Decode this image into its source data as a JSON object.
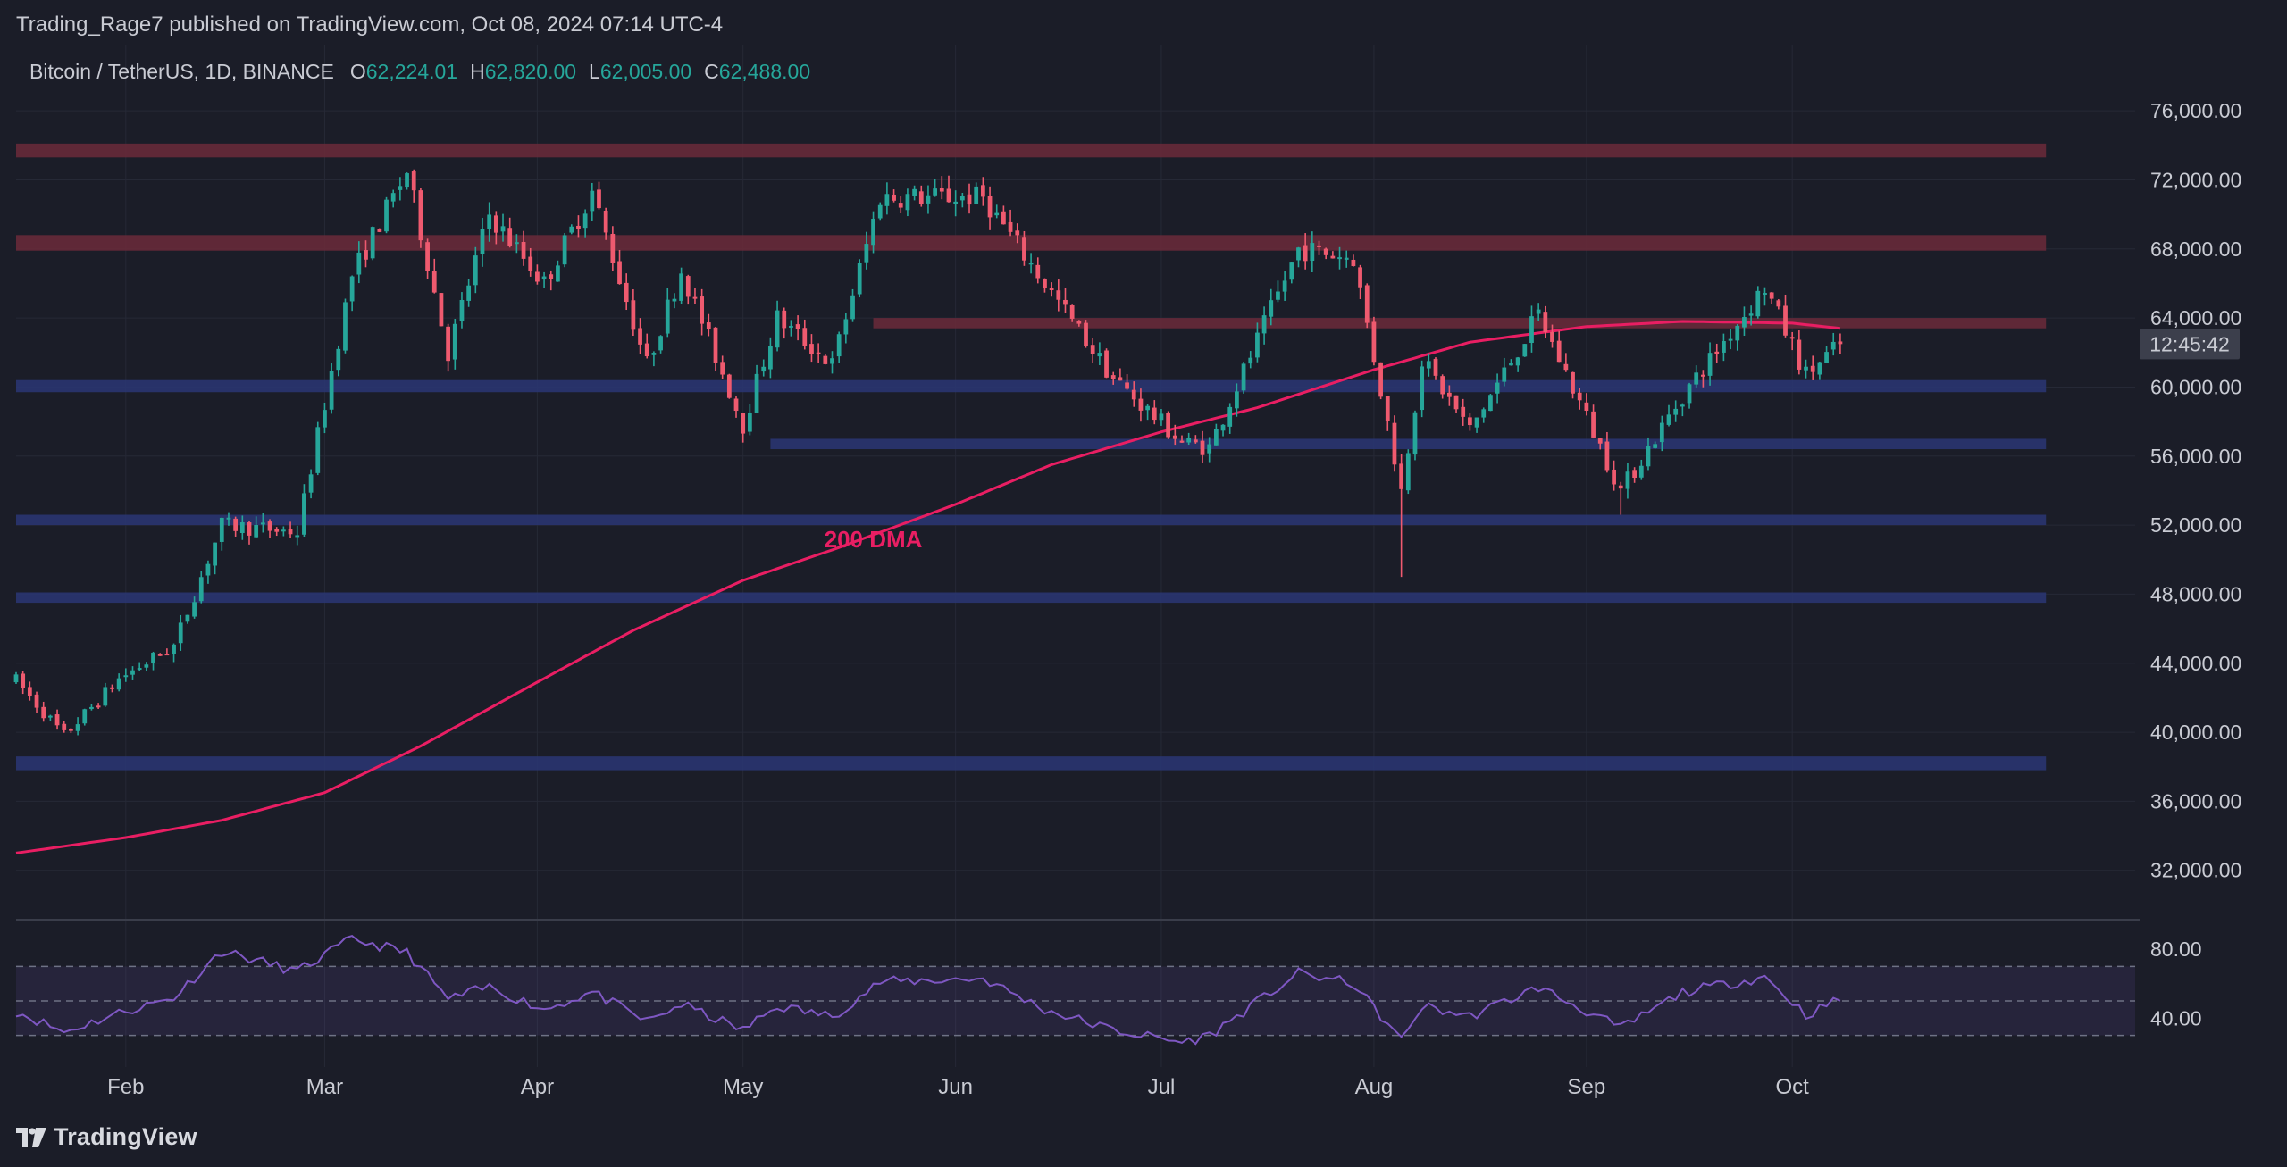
{
  "attribution": "Trading_Rage7 published on TradingView.com, Oct 08, 2024 07:14 UTC-4",
  "brand": {
    "name": "TradingView",
    "icon": "tradingview-logo-icon"
  },
  "colors": {
    "background": "#1b1d28",
    "up": "#26a69a",
    "down": "#ef5a6f",
    "dma": "#e91e63",
    "resistance": "#6b2a3a",
    "support": "#2a3570",
    "rsi": "#7e57c2",
    "text": "#c9cbd3"
  },
  "chart_data": [
    {
      "type": "candlestick",
      "title": "Bitcoin / TetherUS, 1D, BINANCE",
      "ohlc_header": {
        "O": "62,224.01",
        "H": "62,820.00",
        "L": "62,005.00",
        "C": "62,488.00"
      },
      "countdown": "12:45:42",
      "x_labels": [
        "Feb",
        "Mar",
        "Apr",
        "May",
        "Jun",
        "Jul",
        "Aug",
        "Sep",
        "Oct"
      ],
      "x_label_dates": [
        "2024-02-01",
        "2024-03-01",
        "2024-04-01",
        "2024-05-01",
        "2024-06-01",
        "2024-07-01",
        "2024-08-01",
        "2024-09-01",
        "2024-10-01"
      ],
      "xlim": [
        "2024-01-16",
        "2024-11-20"
      ],
      "y_ticks": [
        "76,000.00",
        "72,000.00",
        "68,000.00",
        "64,000.00",
        "60,000.00",
        "56,000.00",
        "52,000.00",
        "48,000.00",
        "44,000.00",
        "40,000.00",
        "36,000.00",
        "32,000.00"
      ],
      "ylim": [
        29400,
        78800
      ],
      "resistance_zones": [
        {
          "from": "2024-01-16",
          "to": "2024-11-07",
          "y": [
            73300,
            74100
          ]
        },
        {
          "from": "2024-01-16",
          "to": "2024-11-07",
          "y": [
            67900,
            68800
          ]
        },
        {
          "from": "2024-05-20",
          "to": "2024-11-07",
          "y": [
            63400,
            64000
          ]
        }
      ],
      "support_zones": [
        {
          "from": "2024-01-16",
          "to": "2024-11-07",
          "y": [
            59700,
            60400
          ]
        },
        {
          "from": "2024-05-05",
          "to": "2024-11-07",
          "y": [
            56400,
            57000
          ]
        },
        {
          "from": "2024-01-16",
          "to": "2024-11-07",
          "y": [
            52000,
            52600
          ]
        },
        {
          "from": "2024-01-16",
          "to": "2024-11-07",
          "y": [
            47500,
            48100
          ]
        },
        {
          "from": "2024-01-16",
          "to": "2024-11-07",
          "y": [
            37800,
            38600
          ]
        }
      ],
      "dma_label": "200 DMA",
      "dma_label_point": {
        "date": "2024-05-20",
        "value": 50700
      },
      "dma_200": [
        {
          "date": "2024-01-16",
          "value": 33000
        },
        {
          "date": "2024-02-01",
          "value": 33900
        },
        {
          "date": "2024-02-15",
          "value": 34900
        },
        {
          "date": "2024-03-01",
          "value": 36500
        },
        {
          "date": "2024-03-15",
          "value": 39200
        },
        {
          "date": "2024-04-01",
          "value": 42900
        },
        {
          "date": "2024-04-15",
          "value": 45900
        },
        {
          "date": "2024-05-01",
          "value": 48800
        },
        {
          "date": "2024-05-15",
          "value": 50700
        },
        {
          "date": "2024-06-01",
          "value": 53200
        },
        {
          "date": "2024-06-15",
          "value": 55500
        },
        {
          "date": "2024-07-01",
          "value": 57400
        },
        {
          "date": "2024-07-15",
          "value": 58800
        },
        {
          "date": "2024-08-01",
          "value": 61000
        },
        {
          "date": "2024-08-15",
          "value": 62600
        },
        {
          "date": "2024-09-01",
          "value": 63500
        },
        {
          "date": "2024-09-15",
          "value": 63800
        },
        {
          "date": "2024-10-01",
          "value": 63700
        },
        {
          "date": "2024-10-08",
          "value": 63400
        }
      ],
      "price_path": [
        {
          "date": "2024-01-16",
          "value": 43000
        },
        {
          "date": "2024-01-23",
          "value": 39800
        },
        {
          "date": "2024-01-31",
          "value": 43100
        },
        {
          "date": "2024-02-08",
          "value": 45000
        },
        {
          "date": "2024-02-15",
          "value": 52000
        },
        {
          "date": "2024-02-26",
          "value": 51600
        },
        {
          "date": "2024-03-05",
          "value": 66500
        },
        {
          "date": "2024-03-13",
          "value": 72500
        },
        {
          "date": "2024-03-19",
          "value": 62000
        },
        {
          "date": "2024-03-25",
          "value": 70000
        },
        {
          "date": "2024-04-02",
          "value": 66000
        },
        {
          "date": "2024-04-09",
          "value": 71300
        },
        {
          "date": "2024-04-17",
          "value": 61300
        },
        {
          "date": "2024-04-22",
          "value": 66800
        },
        {
          "date": "2024-05-01",
          "value": 57800
        },
        {
          "date": "2024-05-06",
          "value": 64000
        },
        {
          "date": "2024-05-14",
          "value": 61300
        },
        {
          "date": "2024-05-21",
          "value": 71000
        },
        {
          "date": "2024-06-05",
          "value": 71000
        },
        {
          "date": "2024-06-14",
          "value": 66000
        },
        {
          "date": "2024-06-24",
          "value": 60500
        },
        {
          "date": "2024-07-04",
          "value": 56800
        },
        {
          "date": "2024-07-08",
          "value": 56500
        },
        {
          "date": "2024-07-21",
          "value": 68000
        },
        {
          "date": "2024-07-29",
          "value": 67500
        },
        {
          "date": "2024-08-05",
          "value": 54000
        },
        {
          "date": "2024-08-08",
          "value": 61600
        },
        {
          "date": "2024-08-15",
          "value": 57500
        },
        {
          "date": "2024-08-25",
          "value": 64200
        },
        {
          "date": "2024-09-06",
          "value": 54000
        },
        {
          "date": "2024-09-15",
          "value": 59500
        },
        {
          "date": "2024-09-27",
          "value": 65800
        },
        {
          "date": "2024-10-03",
          "value": 60700
        },
        {
          "date": "2024-10-08",
          "value": 62488
        }
      ],
      "special_wicks": [
        {
          "date": "2024-08-05",
          "low": 49000
        },
        {
          "date": "2024-09-06",
          "low": 52600
        }
      ]
    },
    {
      "type": "line",
      "title": "RSI",
      "y_ticks": [
        "80.00",
        "40.00"
      ],
      "ylim": [
        22,
        92
      ],
      "levels": [
        70,
        50,
        30
      ],
      "rsi_path": [
        {
          "date": "2024-01-16",
          "value": 44
        },
        {
          "date": "2024-01-23",
          "value": 32
        },
        {
          "date": "2024-01-31",
          "value": 43
        },
        {
          "date": "2024-02-08",
          "value": 52
        },
        {
          "date": "2024-02-15",
          "value": 79
        },
        {
          "date": "2024-02-26",
          "value": 67
        },
        {
          "date": "2024-03-05",
          "value": 86
        },
        {
          "date": "2024-03-13",
          "value": 78
        },
        {
          "date": "2024-03-19",
          "value": 51
        },
        {
          "date": "2024-03-25",
          "value": 58
        },
        {
          "date": "2024-04-02",
          "value": 45
        },
        {
          "date": "2024-04-09",
          "value": 55
        },
        {
          "date": "2024-04-17",
          "value": 38
        },
        {
          "date": "2024-04-22",
          "value": 48
        },
        {
          "date": "2024-05-01",
          "value": 33
        },
        {
          "date": "2024-05-06",
          "value": 47
        },
        {
          "date": "2024-05-14",
          "value": 41
        },
        {
          "date": "2024-05-21",
          "value": 61
        },
        {
          "date": "2024-06-05",
          "value": 63
        },
        {
          "date": "2024-06-14",
          "value": 45
        },
        {
          "date": "2024-06-24",
          "value": 33
        },
        {
          "date": "2024-07-04",
          "value": 26
        },
        {
          "date": "2024-07-08",
          "value": 30
        },
        {
          "date": "2024-07-21",
          "value": 66
        },
        {
          "date": "2024-07-29",
          "value": 60
        },
        {
          "date": "2024-08-05",
          "value": 27
        },
        {
          "date": "2024-08-08",
          "value": 47
        },
        {
          "date": "2024-08-15",
          "value": 41
        },
        {
          "date": "2024-08-25",
          "value": 58
        },
        {
          "date": "2024-09-06",
          "value": 34
        },
        {
          "date": "2024-09-15",
          "value": 55
        },
        {
          "date": "2024-09-27",
          "value": 64
        },
        {
          "date": "2024-10-03",
          "value": 42
        },
        {
          "date": "2024-10-08",
          "value": 51
        }
      ]
    }
  ]
}
